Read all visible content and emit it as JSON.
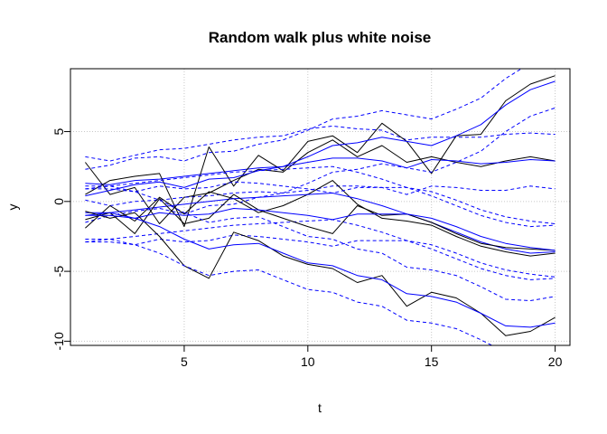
{
  "chart_data": {
    "type": "line",
    "title": "Random walk plus white noise",
    "xlabel": "t",
    "ylabel": "y",
    "xlim": [
      0.4,
      20.6
    ],
    "ylim": [
      -10.3,
      9.5
    ],
    "x_ticks": [
      5,
      10,
      15,
      20
    ],
    "y_ticks": [
      -10,
      -5,
      0,
      5
    ],
    "grid": true,
    "colors": {
      "observed": "#000000",
      "filtered": "#0000ff",
      "bands": "#0000ff",
      "grid": "#c8c8c8"
    },
    "x": [
      1,
      2,
      3,
      4,
      5,
      6,
      7,
      8,
      9,
      10,
      11,
      12,
      13,
      14,
      15,
      16,
      17,
      18,
      19,
      20
    ],
    "series": [
      {
        "name": "",
        "kind": "observed",
        "values": [
          2.8,
          0.5,
          1.0,
          -1.6,
          0.3,
          0.6,
          1.5,
          2.3,
          2.1,
          3.5,
          4.4,
          3.2,
          4.0,
          2.8,
          3.2,
          2.8,
          2.5,
          2.9,
          3.2,
          2.9
        ]
      },
      {
        "name": "",
        "kind": "filtered",
        "values": [
          1.3,
          1.2,
          1.5,
          1.6,
          1.8,
          2.0,
          2.2,
          2.4,
          2.5,
          2.8,
          3.1,
          3.1,
          2.9,
          2.4,
          3.0,
          2.9,
          2.7,
          2.8,
          3.0,
          2.9
        ]
      },
      {
        "name": "",
        "kind": "band",
        "values": [
          3.2,
          2.9,
          3.3,
          3.7,
          3.8,
          4.1,
          4.4,
          4.6,
          4.7,
          5.2,
          5.4,
          5.2,
          5.1,
          4.4,
          4.6,
          4.6,
          4.6,
          4.8,
          4.9,
          4.8
        ]
      },
      {
        "name": "",
        "kind": "band",
        "values": [
          0.1,
          -0.3,
          0.0,
          0.1,
          0.3,
          0.4,
          0.6,
          0.7,
          0.6,
          0.8,
          1.1,
          1.1,
          1.0,
          0.5,
          1.1,
          1.0,
          0.8,
          0.8,
          1.1,
          0.9
        ]
      },
      {
        "name": "",
        "kind": "observed",
        "values": [
          0.5,
          1.5,
          1.8,
          2.0,
          -1.8,
          3.9,
          1.1,
          3.3,
          2.2,
          4.3,
          4.7,
          3.5,
          5.6,
          4.3,
          2.0,
          4.7,
          4.8,
          7.2,
          8.4,
          9.0
        ]
      },
      {
        "name": "",
        "kind": "filtered",
        "values": [
          0.4,
          0.8,
          1.2,
          1.4,
          1.0,
          1.6,
          1.7,
          2.2,
          2.5,
          3.2,
          4.0,
          4.2,
          4.6,
          4.3,
          4.0,
          4.7,
          5.5,
          6.9,
          8.0,
          8.6
        ]
      },
      {
        "name": "",
        "kind": "band",
        "values": [
          2.3,
          2.6,
          3.1,
          3.2,
          2.9,
          3.5,
          3.6,
          4.1,
          4.4,
          5.1,
          5.9,
          6.1,
          6.5,
          6.2,
          5.9,
          6.6,
          7.4,
          8.8,
          9.9,
          10.5
        ]
      },
      {
        "name": "",
        "kind": "band",
        "values": [
          -1.5,
          -1.0,
          -0.7,
          -0.5,
          -0.9,
          -0.3,
          -0.2,
          0.3,
          0.6,
          1.3,
          2.1,
          2.3,
          2.7,
          2.4,
          2.1,
          2.8,
          3.6,
          5.0,
          6.1,
          6.7
        ]
      },
      {
        "name": "",
        "kind": "observed",
        "values": [
          -1.9,
          -0.3,
          -1.4,
          0.3,
          -0.9,
          0.7,
          0.2,
          -0.8,
          -0.3,
          0.5,
          1.5,
          -0.2,
          -1.2,
          -1.4,
          -1.7,
          -2.5,
          -3.2,
          -3.6,
          -3.9,
          -3.7
        ]
      },
      {
        "name": "",
        "kind": "filtered",
        "values": [
          -1.0,
          -0.8,
          -0.6,
          -0.4,
          -0.2,
          0.0,
          0.2,
          0.3,
          0.4,
          0.5,
          0.6,
          0.2,
          -0.3,
          -0.9,
          -1.5,
          -2.2,
          -2.9,
          -3.4,
          -3.7,
          -3.6
        ]
      },
      {
        "name": "",
        "kind": "band",
        "values": [
          0.9,
          1.1,
          1.3,
          1.5,
          1.7,
          1.9,
          2.1,
          2.2,
          2.3,
          2.4,
          2.5,
          2.1,
          1.6,
          1.0,
          0.4,
          -0.3,
          -1.0,
          -1.5,
          -1.8,
          -1.7
        ]
      },
      {
        "name": "",
        "kind": "band",
        "values": [
          -2.9,
          -2.7,
          -2.5,
          -2.3,
          -2.1,
          -1.9,
          -1.7,
          -1.6,
          -1.5,
          -1.4,
          -1.3,
          -1.7,
          -2.2,
          -2.8,
          -3.4,
          -4.1,
          -4.8,
          -5.3,
          -5.6,
          -5.5
        ]
      },
      {
        "name": "",
        "kind": "observed",
        "values": [
          -1.3,
          -0.8,
          -2.3,
          0.2,
          -1.6,
          -1.2,
          0.5,
          -0.6,
          -1.2,
          -1.8,
          -2.3,
          -0.3,
          -1.0,
          -0.9,
          -1.5,
          -2.3,
          -3.0,
          -3.3,
          -3.4,
          -3.5
        ]
      },
      {
        "name": "",
        "kind": "filtered",
        "values": [
          -0.8,
          -0.8,
          -1.2,
          -0.8,
          -1.0,
          -0.9,
          -0.5,
          -0.6,
          -0.8,
          -1.0,
          -1.3,
          -0.9,
          -0.9,
          -0.9,
          -1.2,
          -1.8,
          -2.5,
          -3.0,
          -3.3,
          -3.5
        ]
      },
      {
        "name": "",
        "kind": "band",
        "values": [
          1.1,
          1.1,
          0.7,
          1.1,
          0.9,
          1.0,
          1.4,
          1.3,
          1.1,
          0.9,
          0.6,
          1.0,
          1.0,
          1.0,
          0.7,
          0.1,
          -0.6,
          -1.1,
          -1.4,
          -1.6
        ]
      },
      {
        "name": "",
        "kind": "band",
        "values": [
          -2.7,
          -2.7,
          -3.1,
          -2.7,
          -2.9,
          -2.8,
          -2.4,
          -2.5,
          -2.7,
          -2.9,
          -3.2,
          -2.8,
          -2.8,
          -2.8,
          -3.1,
          -3.7,
          -4.4,
          -4.9,
          -5.2,
          -5.4
        ]
      },
      {
        "name": "",
        "kind": "observed",
        "values": [
          -0.7,
          -1.2,
          -0.8,
          -2.5,
          -4.6,
          -5.5,
          -2.2,
          -2.8,
          -3.9,
          -4.5,
          -4.8,
          -5.8,
          -5.3,
          -7.5,
          -6.5,
          -6.9,
          -8.0,
          -9.6,
          -9.3,
          -8.3
        ]
      },
      {
        "name": "",
        "kind": "filtered",
        "values": [
          -1.0,
          -1.0,
          -1.2,
          -1.8,
          -2.7,
          -3.4,
          -3.1,
          -3.0,
          -3.7,
          -4.4,
          -4.6,
          -5.3,
          -5.6,
          -6.6,
          -6.8,
          -7.2,
          -8.0,
          -8.9,
          -9.0,
          -8.7
        ]
      },
      {
        "name": "",
        "kind": "band",
        "values": [
          0.9,
          0.9,
          0.7,
          0.1,
          -0.8,
          -1.5,
          -1.2,
          -1.1,
          -1.8,
          -2.5,
          -2.7,
          -3.4,
          -3.7,
          -4.7,
          -4.9,
          -5.3,
          -6.1,
          -7.0,
          -7.1,
          -6.8
        ]
      },
      {
        "name": "",
        "kind": "band",
        "values": [
          -2.9,
          -2.9,
          -3.1,
          -3.7,
          -4.6,
          -5.3,
          -5.0,
          -4.9,
          -5.6,
          -6.3,
          -6.5,
          -7.2,
          -7.5,
          -8.5,
          -8.7,
          -9.1,
          -9.9,
          -10.8,
          -10.9,
          -10.6
        ]
      }
    ]
  }
}
